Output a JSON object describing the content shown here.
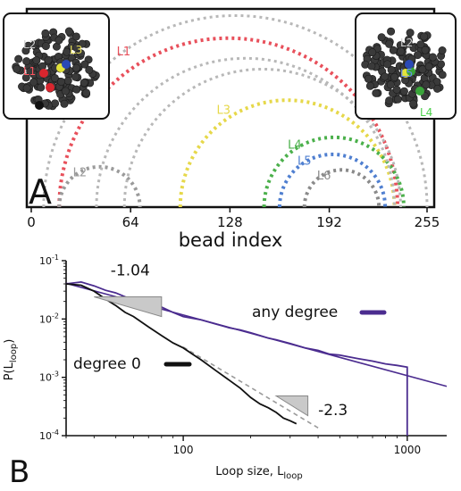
{
  "panel_a": {
    "panel_label": "A",
    "xlabel": "bead index",
    "ticks": [
      "0",
      "64",
      "128",
      "192",
      "255"
    ],
    "tick_values": [
      0,
      64,
      128,
      192,
      255
    ],
    "left_inset_labels": [
      "L2",
      "L3",
      "L1",
      "L6"
    ],
    "right_inset_labels": [
      "L2",
      "L5",
      "L4"
    ],
    "colors": {
      "L1": "#e8505b",
      "L2": "#9a9a9a",
      "L3": "#e6d84a",
      "L4": "#4bb04b",
      "L5": "#4f7fd0",
      "L6": "#8a8a8a",
      "gray": "#b8b8b8",
      "L1_inset": "#d9262e",
      "L3_inset": "#e3e33a",
      "L4_inset": "#3aa43a",
      "L5_inset": "#2a49b5"
    },
    "arcs": [
      {
        "label": "",
        "start": 8,
        "end": 255,
        "color": "gray",
        "show_label": false
      },
      {
        "label": "L1",
        "start": 18,
        "end": 236,
        "color": "L1",
        "show_label": true
      },
      {
        "label": "L2",
        "start": 18,
        "end": 70,
        "color": "L2",
        "show_label": true
      },
      {
        "label": "L3",
        "start": 96,
        "end": 234,
        "color": "L3",
        "show_label": true
      },
      {
        "label": "L4",
        "start": 150,
        "end": 240,
        "color": "L4",
        "show_label": true
      },
      {
        "label": "L5",
        "start": 160,
        "end": 228,
        "color": "L5",
        "show_label": true
      },
      {
        "label": "L6",
        "start": 176,
        "end": 224,
        "color": "L6",
        "show_label": true
      },
      {
        "label": "",
        "start": 42,
        "end": 234,
        "color": "gray",
        "show_label": false
      },
      {
        "label": "",
        "start": 60,
        "end": 238,
        "color": "gray",
        "show_label": false
      }
    ]
  },
  "chart_data": {
    "type": "line",
    "panel_label": "B",
    "xlabel": "Loop size, L",
    "xlabel_sub": "loop",
    "ylabel": "P(L",
    "ylabel_sub": "loop",
    "ylabel_close": ")",
    "xscale": "log",
    "yscale": "log",
    "xlim": [
      30,
      1500
    ],
    "ylim": [
      0.0001,
      0.1
    ],
    "xticks": [
      100,
      1000
    ],
    "xtick_labels": [
      "100",
      "1000"
    ],
    "yticks": [
      0.0001,
      0.001,
      0.01,
      0.1
    ],
    "ytick_labels": [
      {
        "base": "10",
        "exp": "-4"
      },
      {
        "base": "10",
        "exp": "-3"
      },
      {
        "base": "10",
        "exp": "-2"
      },
      {
        "base": "10",
        "exp": "-1"
      }
    ],
    "series": [
      {
        "name": "any degree",
        "color": "#4b2c8f",
        "x": [
          30,
          35,
          40,
          45,
          50,
          55,
          60,
          70,
          80,
          90,
          100,
          120,
          140,
          160,
          180,
          200,
          220,
          240,
          260,
          300,
          350,
          400,
          450,
          500,
          600,
          700,
          800,
          900,
          1000,
          1000
        ],
        "y": [
          0.04,
          0.043,
          0.037,
          0.031,
          0.028,
          0.024,
          0.022,
          0.018,
          0.016,
          0.013,
          0.011,
          0.0097,
          0.0082,
          0.0071,
          0.0065,
          0.0058,
          0.0052,
          0.0047,
          0.0044,
          0.0038,
          0.0032,
          0.0029,
          0.0025,
          0.0024,
          0.0021,
          0.0019,
          0.0017,
          0.0016,
          0.0015,
          0.0001
        ]
      },
      {
        "name": "degree 0",
        "color": "#111111",
        "x": [
          30,
          35,
          40,
          45,
          50,
          55,
          60,
          70,
          80,
          90,
          100,
          110,
          120,
          140,
          160,
          180,
          200,
          220,
          240,
          260,
          280,
          300,
          320
        ],
        "y": [
          0.04,
          0.038,
          0.03,
          0.022,
          0.017,
          0.013,
          0.011,
          0.0073,
          0.0052,
          0.0039,
          0.0032,
          0.0025,
          0.002,
          0.0013,
          0.0009,
          0.00065,
          0.00045,
          0.00035,
          0.0003,
          0.00025,
          0.0002,
          0.00018,
          0.00016
        ]
      }
    ],
    "fits": [
      {
        "slope": -1.04,
        "label": "-1.04",
        "color": "#4b2c8f",
        "x0": 30,
        "y0": 0.041,
        "x1": 1500
      },
      {
        "slope": -2.3,
        "label": "-2.3",
        "color": "#9a9a9a",
        "x0": 100,
        "y0": 0.0033,
        "x1": 400,
        "dashed": true
      }
    ]
  }
}
